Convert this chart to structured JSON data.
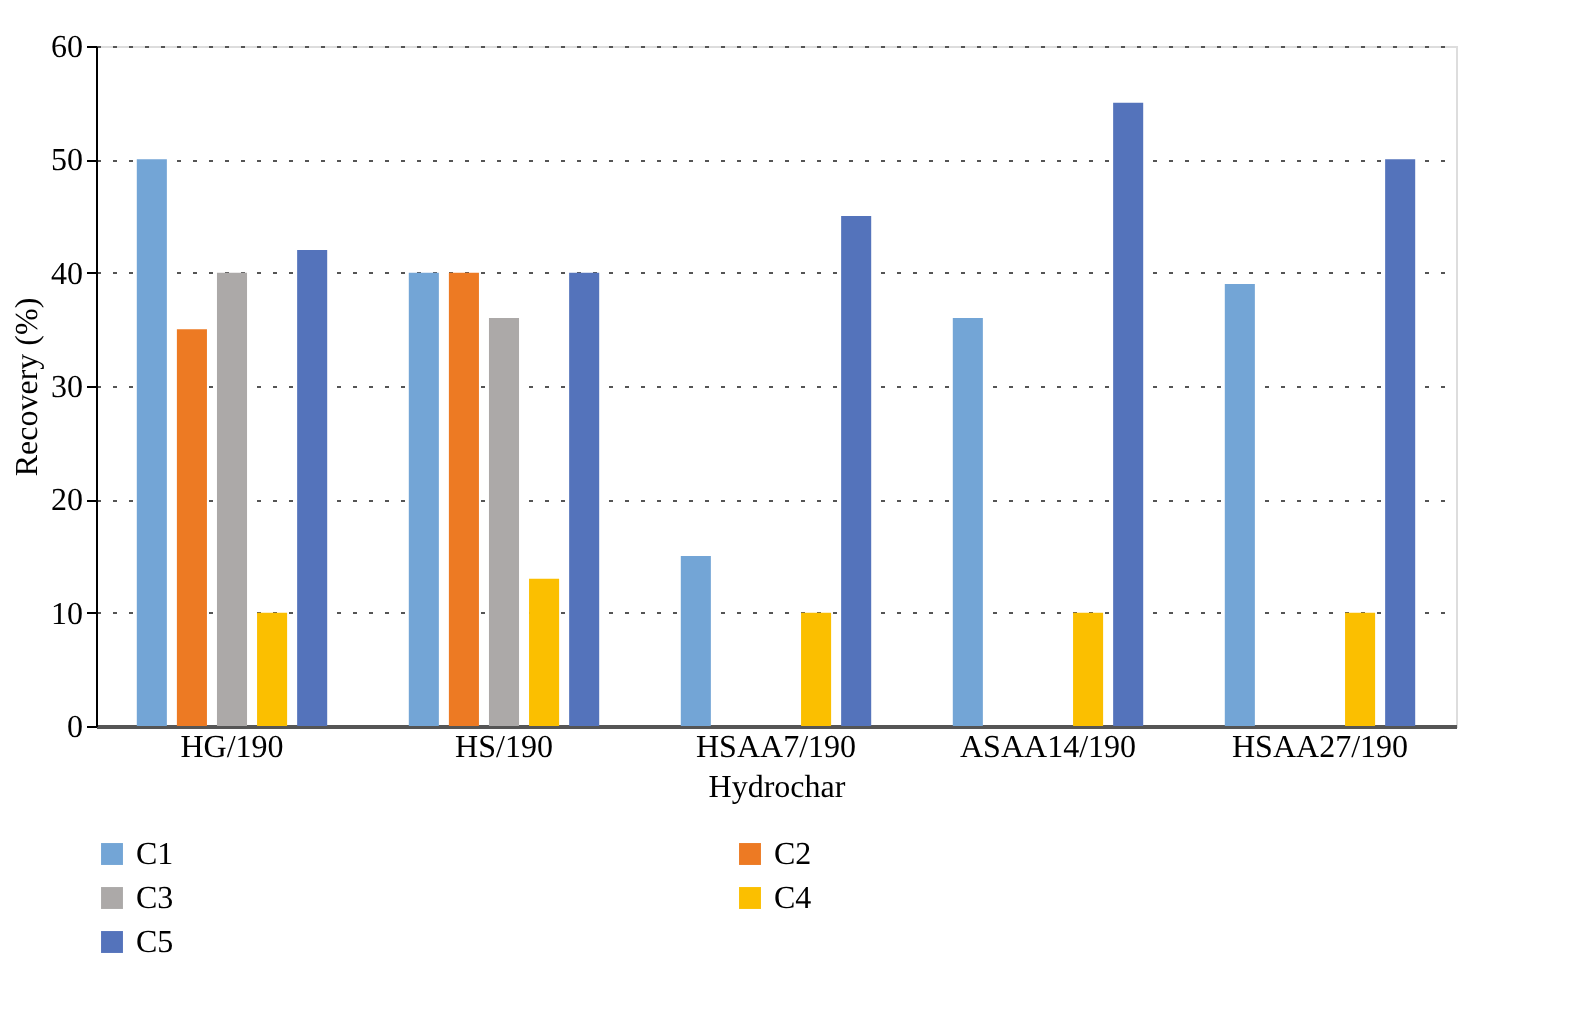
{
  "chart_data": {
    "type": "bar",
    "xlabel": "Hydrochar",
    "ylabel": "Recovery (%)",
    "categories": [
      "HG/190",
      "HS/190",
      "HSAA7/190",
      "ASAA14/190",
      "HSAA27/190"
    ],
    "series": [
      {
        "name": "C1",
        "color": "#73a5d6",
        "values": [
          50,
          40,
          15,
          36,
          39
        ]
      },
      {
        "name": "C2",
        "color": "#ed7a23",
        "values": [
          35,
          40,
          null,
          null,
          null
        ]
      },
      {
        "name": "C3",
        "color": "#aca9a8",
        "values": [
          40,
          36,
          null,
          null,
          null
        ]
      },
      {
        "name": "C4",
        "color": "#fbbf00",
        "values": [
          10,
          13,
          10,
          10,
          10
        ]
      },
      {
        "name": "C5",
        "color": "#5473bb",
        "values": [
          42,
          40,
          45,
          55,
          50
        ]
      }
    ],
    "ylim": [
      0,
      60
    ],
    "yticks": [
      0,
      10,
      20,
      30,
      40,
      50,
      60
    ],
    "grid": "y",
    "legend": "bottom"
  }
}
